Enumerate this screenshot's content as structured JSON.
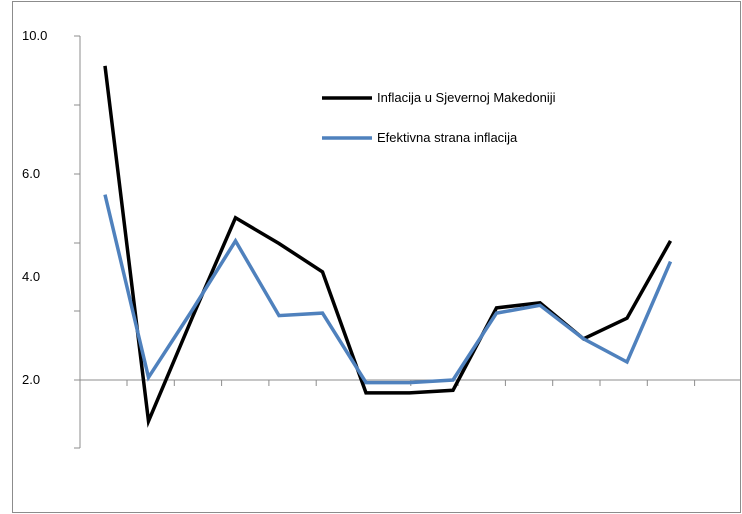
{
  "chart_data": {
    "type": "line",
    "x": [
      1,
      2,
      3,
      4,
      5,
      6,
      7,
      8,
      9,
      10,
      11,
      12,
      13,
      14
    ],
    "y_tick_labels": [
      "2.0",
      "4.0",
      "6.0",
      "10.0"
    ],
    "y_tick_values": [
      2,
      4,
      6,
      10
    ],
    "ylim": [
      0,
      10
    ],
    "grid": false,
    "legend_position": "top-right",
    "series": [
      {
        "name": "Inflacija u Sjevernoj Makedoniji",
        "color": "#000000",
        "values": [
          8.1,
          1.2,
          3.2,
          5.15,
          4.65,
          4.1,
          1.75,
          1.75,
          1.8,
          3.4,
          3.5,
          2.8,
          3.2,
          4.7
        ]
      },
      {
        "name": "Efektivna strana inflacija",
        "color": "#4f81bd",
        "values": [
          5.6,
          2.05,
          3.35,
          4.7,
          3.25,
          3.3,
          1.95,
          1.95,
          2.0,
          3.3,
          3.45,
          2.8,
          2.35,
          4.3
        ]
      }
    ]
  }
}
